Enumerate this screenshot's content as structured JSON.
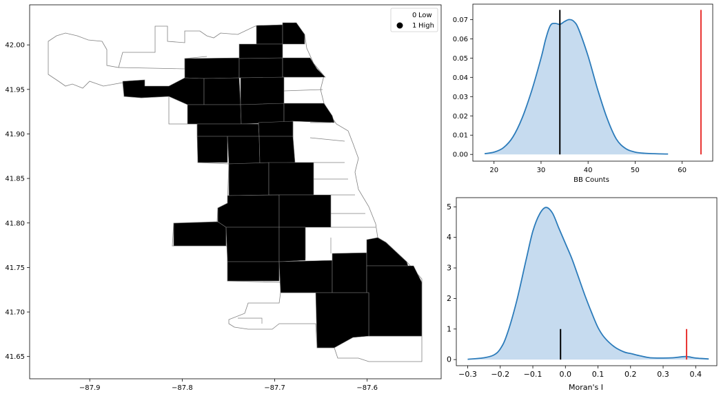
{
  "chart_data": [
    {
      "type": "choropleth",
      "legend": {
        "placement": "top-right",
        "entries": [
          {
            "value": "0",
            "label": "Low",
            "color": "#ffffff"
          },
          {
            "value": "1",
            "label": "High",
            "color": "#000000"
          }
        ]
      },
      "xlim": [
        -87.965,
        -87.52
      ],
      "ylim": [
        41.625,
        42.045
      ],
      "xticks": [
        "−87.9",
        "−87.8",
        "−87.7",
        "−87.6"
      ],
      "xtick_values": [
        -87.9,
        -87.8,
        -87.7,
        -87.6
      ],
      "yticks": [
        "41.65",
        "41.70",
        "41.75",
        "41.80",
        "41.85",
        "41.90",
        "41.95",
        "42.00"
      ],
      "ytick_values": [
        41.65,
        41.7,
        41.75,
        41.8,
        41.85,
        41.9,
        41.95,
        42.0
      ],
      "colors": {
        "high": "#000000",
        "low": "#ffffff",
        "edge": "#7f7f7f"
      },
      "grid": false
    },
    {
      "type": "area",
      "xlabel": "BB Counts",
      "ylabel": "",
      "xlim": [
        15.5,
        66.5
      ],
      "ylim": [
        -0.0035,
        0.078
      ],
      "xticks": [
        20,
        30,
        40,
        50,
        60
      ],
      "yticks": [
        "0.00",
        "0.01",
        "0.02",
        "0.03",
        "0.04",
        "0.05",
        "0.06",
        "0.07"
      ],
      "ytick_values": [
        0,
        0.01,
        0.02,
        0.03,
        0.04,
        0.05,
        0.06,
        0.07
      ],
      "x": [
        18,
        20,
        22,
        24,
        26,
        28,
        30,
        31,
        32,
        33,
        34,
        35,
        36,
        37,
        38,
        40,
        42,
        44,
        46,
        48,
        50,
        52,
        54,
        57
      ],
      "y": [
        0.0004,
        0.0012,
        0.0035,
        0.009,
        0.019,
        0.033,
        0.05,
        0.06,
        0.067,
        0.068,
        0.0675,
        0.069,
        0.07,
        0.069,
        0.065,
        0.051,
        0.034,
        0.019,
        0.008,
        0.003,
        0.0012,
        0.0006,
        0.0004,
        0.0002
      ],
      "fill_color": "#c6dbef",
      "line_color": "#2b7bba",
      "vlines": [
        {
          "x": 34,
          "ymax": 0.075,
          "color": "#000000"
        },
        {
          "x": 64,
          "ymax": 0.075,
          "color": "#e8312f"
        }
      ],
      "grid": false
    },
    {
      "type": "area",
      "xlabel": "Moran's I",
      "ylabel": "",
      "xlim": [
        -0.335,
        0.465
      ],
      "ylim": [
        -0.2,
        5.3
      ],
      "xticks": [
        "−0.3",
        "−0.2",
        "−0.1",
        "0.0",
        "0.1",
        "0.2",
        "0.3",
        "0.4"
      ],
      "xtick_values": [
        -0.3,
        -0.2,
        -0.1,
        0.0,
        0.1,
        0.2,
        0.3,
        0.4
      ],
      "yticks": [
        0,
        1,
        2,
        3,
        4,
        5
      ],
      "x": [
        -0.3,
        -0.25,
        -0.22,
        -0.2,
        -0.18,
        -0.15,
        -0.12,
        -0.1,
        -0.08,
        -0.06,
        -0.04,
        -0.02,
        0.0,
        0.02,
        0.04,
        0.06,
        0.08,
        0.1,
        0.12,
        0.15,
        0.18,
        0.2,
        0.23,
        0.26,
        0.3,
        0.33,
        0.37,
        0.4,
        0.44
      ],
      "y": [
        0.01,
        0.06,
        0.15,
        0.35,
        0.8,
        1.9,
        3.3,
        4.2,
        4.75,
        4.98,
        4.8,
        4.3,
        3.8,
        3.3,
        2.7,
        2.1,
        1.55,
        1.05,
        0.72,
        0.42,
        0.25,
        0.2,
        0.12,
        0.06,
        0.05,
        0.06,
        0.1,
        0.05,
        0.02
      ],
      "fill_color": "#c6dbef",
      "line_color": "#2b7bba",
      "vlines": [
        {
          "x": -0.015,
          "ymax": 1.0,
          "color": "#000000"
        },
        {
          "x": 0.372,
          "ymax": 1.0,
          "color": "#e8312f"
        }
      ],
      "grid": false
    }
  ]
}
